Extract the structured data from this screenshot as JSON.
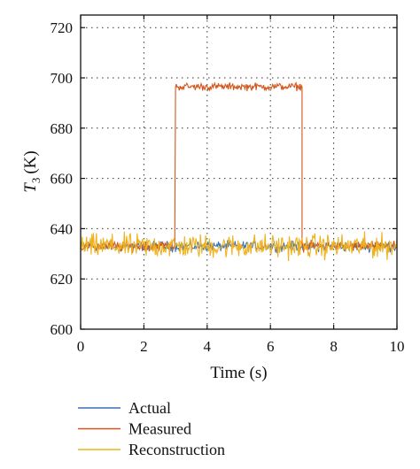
{
  "chart_data": {
    "type": "line",
    "xlabel": "Time (s)",
    "ylabel_symbol": "T",
    "ylabel_subscript": "3",
    "ylabel_unit": "(K)",
    "xlim": [
      0,
      10
    ],
    "ylim": [
      600,
      725
    ],
    "xticks": [
      0,
      2,
      4,
      6,
      8,
      10
    ],
    "yticks": [
      600,
      620,
      640,
      660,
      680,
      700,
      720
    ],
    "grid": true,
    "grid_style": "dotted",
    "legend_position": "bottom",
    "series": [
      {
        "name": "Actual",
        "color": "#3c6fb4",
        "description_values": {
          "baseline_mean": 633,
          "noise_amplitude": 3
        }
      },
      {
        "name": "Measured",
        "color": "#d2561a",
        "step": {
          "start": 3.0,
          "end": 7.0,
          "low_mean": 633,
          "high_mean": 696.5
        }
      },
      {
        "name": "Reconstruction",
        "color": "#efb21c",
        "description_values": {
          "baseline_mean": 633,
          "noise_amplitude": 7
        }
      }
    ]
  }
}
